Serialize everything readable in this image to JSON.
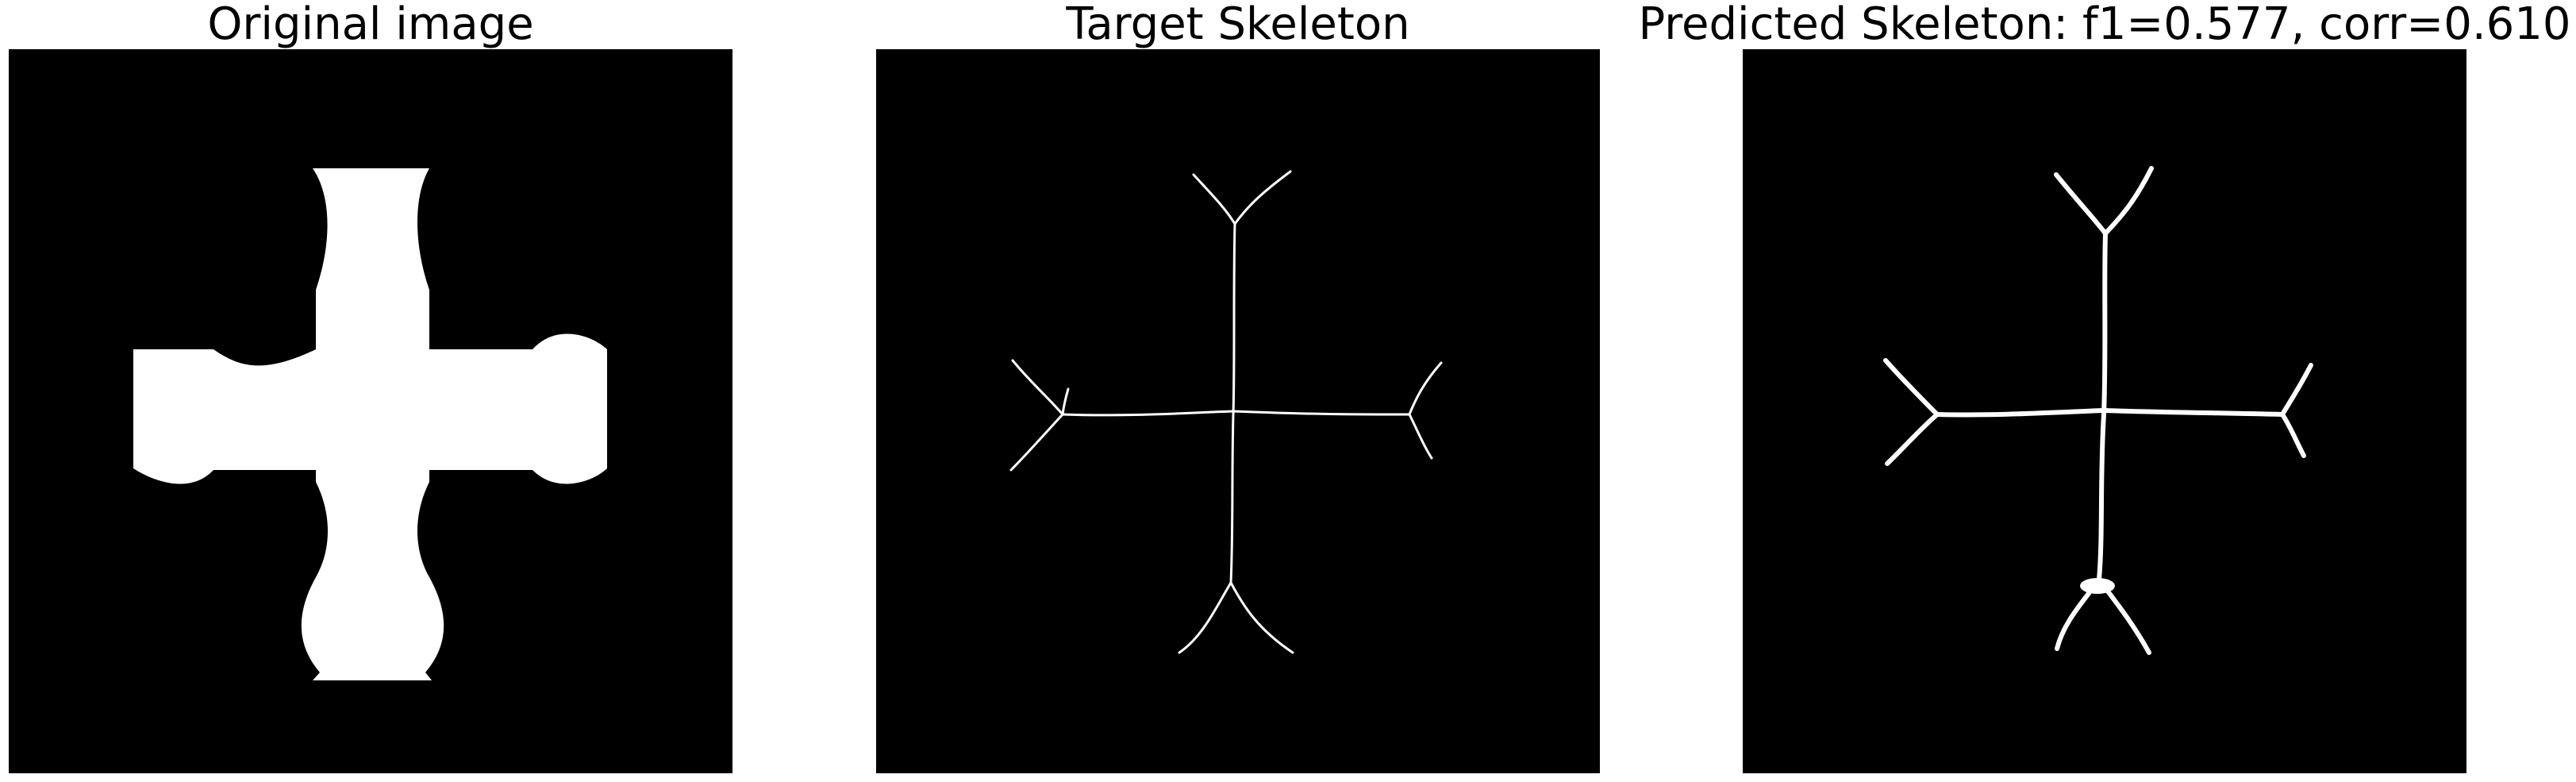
{
  "panels": [
    {
      "title": "Original image"
    },
    {
      "title": "Target Skeleton"
    },
    {
      "title": "Predicted Skeleton: f1=0.577, corr=0.610"
    }
  ],
  "colors": {
    "background": "#000000",
    "foreground": "#ffffff"
  }
}
